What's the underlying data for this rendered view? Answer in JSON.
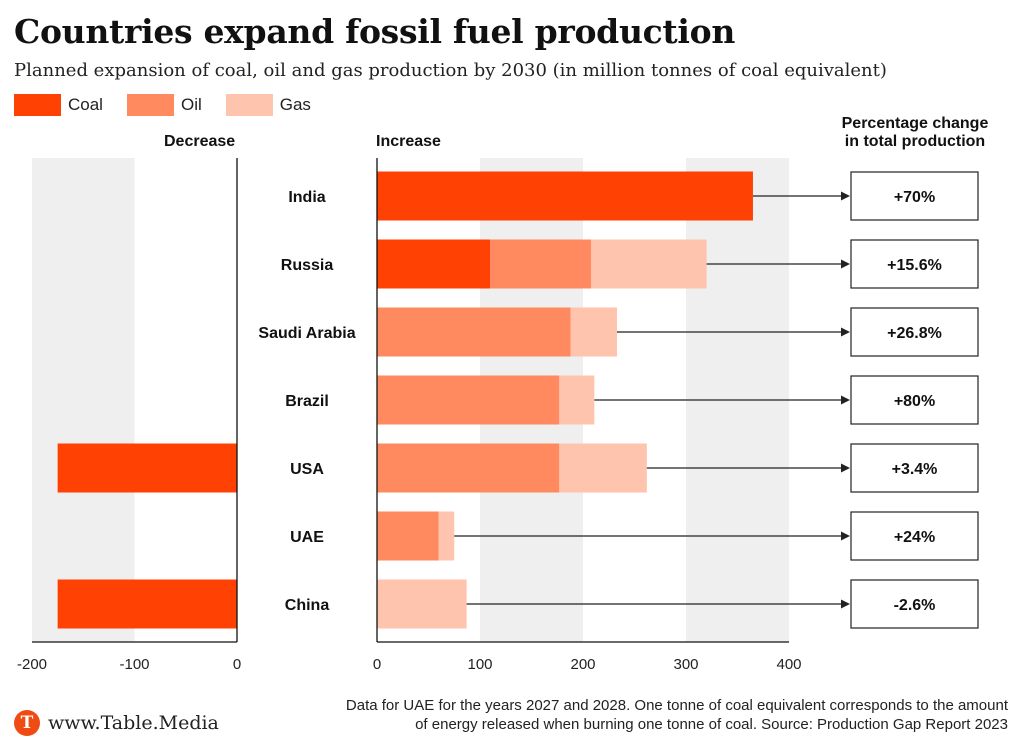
{
  "title": "Countries expand fossil fuel production",
  "subtitle": "Planned expansion of coal, oil and gas production by 2030 (in million tonnes of coal equivalent)",
  "legend": [
    {
      "label": "Coal",
      "color": "#ff4103"
    },
    {
      "label": "Oil",
      "color": "#ff8a60"
    },
    {
      "label": "Gas",
      "color": "#ffc4ad"
    }
  ],
  "headers": {
    "decrease": "Decrease",
    "increase": "Increase",
    "percentage_line1": "Percentage change",
    "percentage_line2": "in total production"
  },
  "chart_data": {
    "type": "bar",
    "orientation": "horizontal",
    "stacked": true,
    "categories": [
      "India",
      "Russia",
      "Saudi Arabia",
      "Brazil",
      "USA",
      "UAE",
      "China"
    ],
    "series": [
      {
        "name": "Coal",
        "color": "#ff4103",
        "decrease": [
          0,
          0,
          0,
          0,
          -175,
          0,
          -175
        ],
        "increase": [
          365,
          110,
          0,
          0,
          0,
          0,
          0
        ]
      },
      {
        "name": "Oil",
        "color": "#ff8a60",
        "decrease": [
          0,
          0,
          0,
          0,
          0,
          0,
          0
        ],
        "increase": [
          0,
          98,
          188,
          177,
          177,
          60,
          0
        ]
      },
      {
        "name": "Gas",
        "color": "#ffc4ad",
        "decrease": [
          0,
          0,
          0,
          0,
          0,
          0,
          0
        ],
        "increase": [
          0,
          112,
          45,
          34,
          85,
          15,
          87
        ]
      }
    ],
    "percentage_change": [
      "+70%",
      "+15.6%",
      "+26.8%",
      "+80%",
      "+3.4%",
      "+24%",
      "-2.6%"
    ],
    "decrease_axis": {
      "xlim": [
        -200,
        0
      ],
      "ticks": [
        -200,
        -100,
        0
      ],
      "tick_labels": [
        "-200",
        "-100",
        "0"
      ]
    },
    "increase_axis": {
      "xlim": [
        0,
        400
      ],
      "ticks": [
        0,
        100,
        200,
        300,
        400
      ],
      "tick_labels": [
        "0",
        "100",
        "200",
        "300",
        "400"
      ]
    },
    "grid": "alternating vertical bands"
  },
  "footnote_line1": "Data for UAE for the years 2027 and 2028. One tonne of coal equivalent corresponds to the amount",
  "footnote_line2": "of energy released when burning one tonne of coal. Source: Production Gap Report 2023",
  "brand": {
    "logo_letter": "T",
    "text": "www.Table.Media"
  }
}
